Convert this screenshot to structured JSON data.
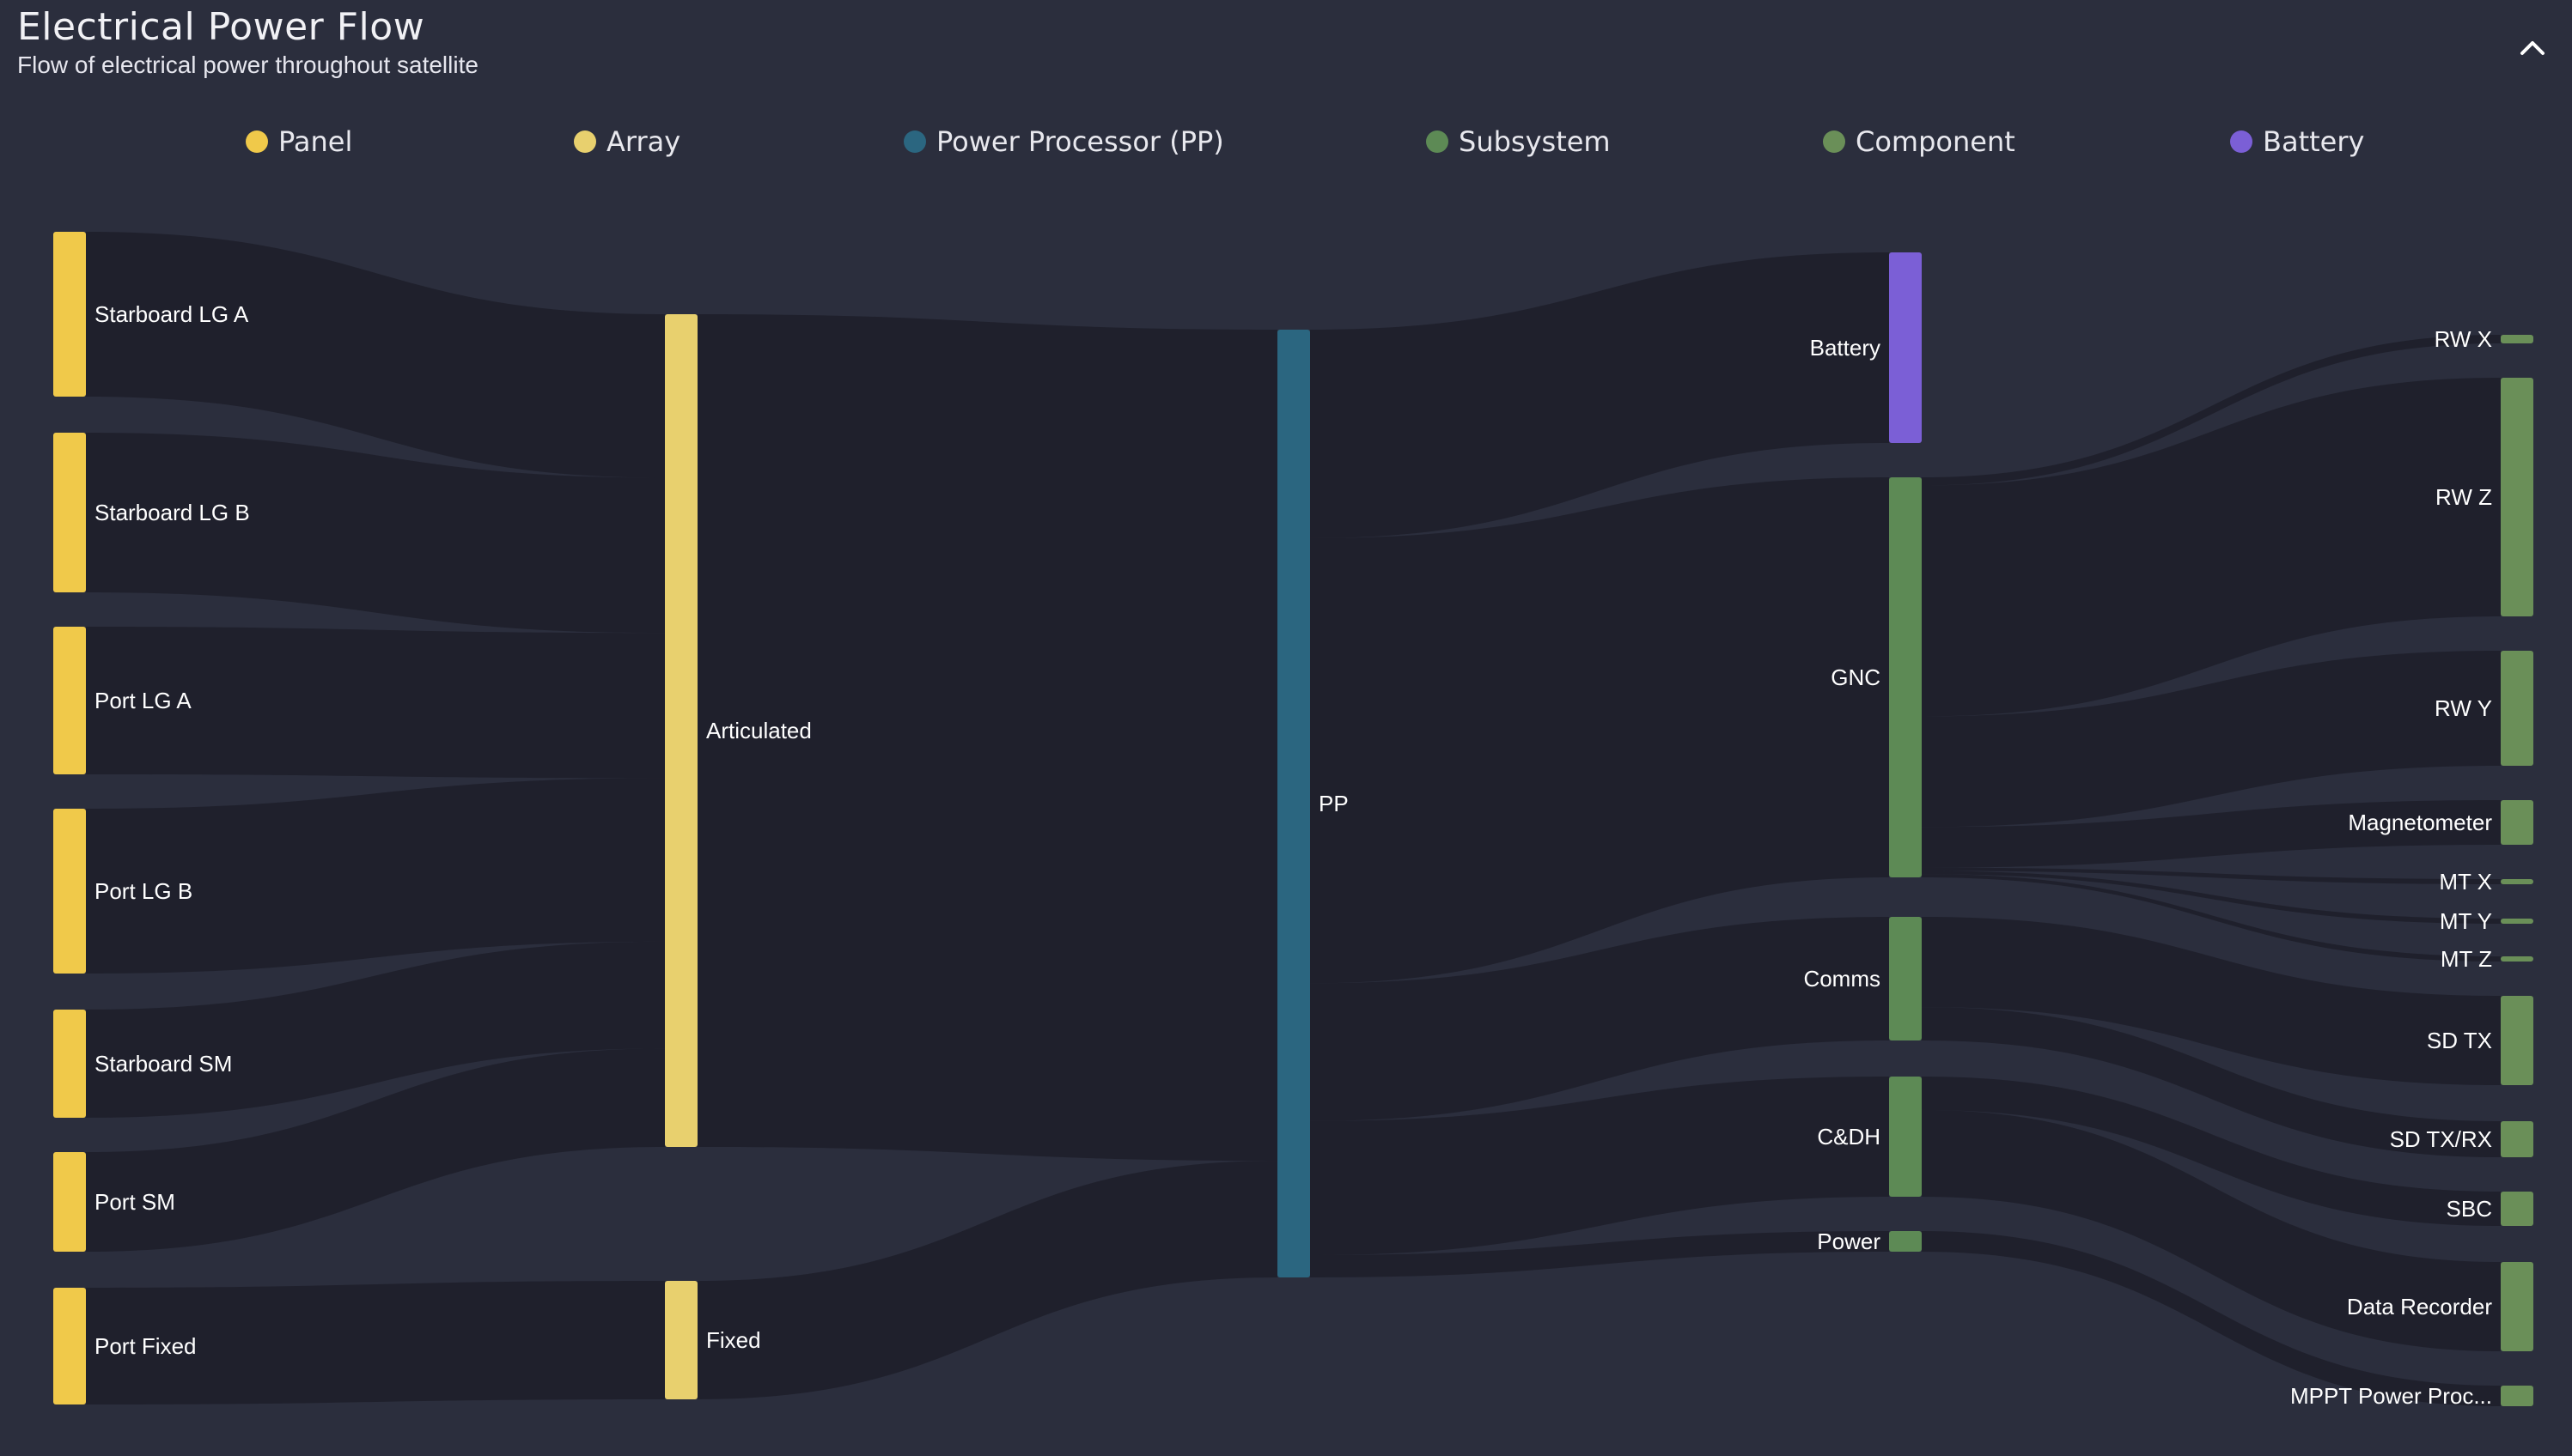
{
  "header": {
    "title": "Electrical Power Flow",
    "subtitle": "Flow of electrical power throughout satellite",
    "collapse_icon": "chevron-up-icon"
  },
  "legend": [
    {
      "label": "Panel",
      "color": "#f0c94a"
    },
    {
      "label": "Array",
      "color": "#e8d06e"
    },
    {
      "label": "Power Processor (PP)",
      "color": "#2b6680"
    },
    {
      "label": "Subsystem",
      "color": "#5d8a55"
    },
    {
      "label": "Component",
      "color": "#6a8f58"
    },
    {
      "label": "Battery",
      "color": "#7b5fd6"
    }
  ],
  "colors": {
    "background": "#2b2e3d",
    "link": "#1e1f2a"
  },
  "chart_data": {
    "type": "sankey",
    "nodes": [
      {
        "id": "starboard_lg_a",
        "label": "Starboard LG A",
        "group": "Panel"
      },
      {
        "id": "starboard_lg_b",
        "label": "Starboard LG B",
        "group": "Panel"
      },
      {
        "id": "port_lg_a",
        "label": "Port LG A",
        "group": "Panel"
      },
      {
        "id": "port_lg_b",
        "label": "Port LG B",
        "group": "Panel"
      },
      {
        "id": "starboard_sm",
        "label": "Starboard SM",
        "group": "Panel"
      },
      {
        "id": "port_sm",
        "label": "Port SM",
        "group": "Panel"
      },
      {
        "id": "port_fixed",
        "label": "Port Fixed",
        "group": "Panel"
      },
      {
        "id": "articulated",
        "label": "Articulated",
        "group": "Array"
      },
      {
        "id": "fixed",
        "label": "Fixed",
        "group": "Array"
      },
      {
        "id": "pp",
        "label": "PP",
        "group": "Power Processor (PP)"
      },
      {
        "id": "battery",
        "label": "Battery",
        "group": "Battery"
      },
      {
        "id": "gnc",
        "label": "GNC",
        "group": "Subsystem"
      },
      {
        "id": "comms",
        "label": "Comms",
        "group": "Subsystem"
      },
      {
        "id": "cdh",
        "label": "C&DH",
        "group": "Subsystem"
      },
      {
        "id": "power",
        "label": "Power",
        "group": "Subsystem"
      },
      {
        "id": "rw_x",
        "label": "RW X",
        "group": "Component"
      },
      {
        "id": "rw_z",
        "label": "RW Z",
        "group": "Component"
      },
      {
        "id": "rw_y",
        "label": "RW Y",
        "group": "Component"
      },
      {
        "id": "magnetometer",
        "label": "Magnetometer",
        "group": "Component"
      },
      {
        "id": "mt_x",
        "label": "MT X",
        "group": "Component"
      },
      {
        "id": "mt_y",
        "label": "MT Y",
        "group": "Component"
      },
      {
        "id": "mt_z",
        "label": "MT Z",
        "group": "Component"
      },
      {
        "id": "sd_tx",
        "label": "SD TX",
        "group": "Component"
      },
      {
        "id": "sd_txrx",
        "label": "SD TX/RX",
        "group": "Component"
      },
      {
        "id": "sbc",
        "label": "SBC",
        "group": "Component"
      },
      {
        "id": "data_recorder",
        "label": "Data Recorder",
        "group": "Component"
      },
      {
        "id": "mppt",
        "label": "MPPT Power Proc...",
        "group": "Component"
      }
    ],
    "links": [
      {
        "source": "starboard_lg_a",
        "target": "articulated",
        "value": 98
      },
      {
        "source": "starboard_lg_b",
        "target": "articulated",
        "value": 93
      },
      {
        "source": "port_lg_a",
        "target": "articulated",
        "value": 87
      },
      {
        "source": "port_lg_b",
        "target": "articulated",
        "value": 98
      },
      {
        "source": "starboard_sm",
        "target": "articulated",
        "value": 64
      },
      {
        "source": "port_sm",
        "target": "articulated",
        "value": 59
      },
      {
        "source": "port_fixed",
        "target": "fixed",
        "value": 70
      },
      {
        "source": "articulated",
        "target": "pp",
        "value": 499
      },
      {
        "source": "fixed",
        "target": "pp",
        "value": 70
      },
      {
        "source": "pp",
        "target": "battery",
        "value": 112
      },
      {
        "source": "pp",
        "target": "gnc",
        "value": 239
      },
      {
        "source": "pp",
        "target": "comms",
        "value": 74
      },
      {
        "source": "pp",
        "target": "cdh",
        "value": 72
      },
      {
        "source": "pp",
        "target": "power",
        "value": 12
      },
      {
        "source": "gnc",
        "target": "rw_x",
        "value": 5
      },
      {
        "source": "gnc",
        "target": "rw_z",
        "value": 142
      },
      {
        "source": "gnc",
        "target": "rw_y",
        "value": 68
      },
      {
        "source": "gnc",
        "target": "magnetometer",
        "value": 25
      },
      {
        "source": "gnc",
        "target": "mt_x",
        "value": 2
      },
      {
        "source": "gnc",
        "target": "mt_y",
        "value": 2
      },
      {
        "source": "gnc",
        "target": "mt_z",
        "value": 2
      },
      {
        "source": "comms",
        "target": "sd_tx",
        "value": 54
      },
      {
        "source": "comms",
        "target": "sd_txrx",
        "value": 20
      },
      {
        "source": "cdh",
        "target": "sbc",
        "value": 20
      },
      {
        "source": "cdh",
        "target": "data_recorder",
        "value": 52
      },
      {
        "source": "power",
        "target": "mppt",
        "value": 12
      }
    ]
  }
}
